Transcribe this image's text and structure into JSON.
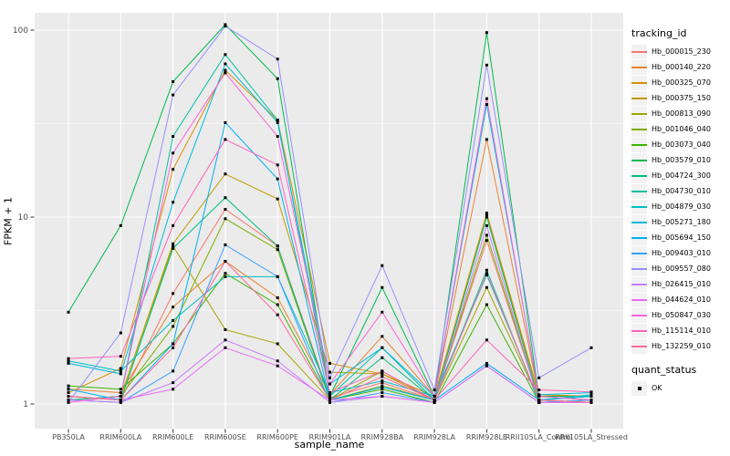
{
  "figure": {
    "background": "#FFFFFF",
    "panel_background": "#EBEBEB",
    "gridline_color": "#FFFFFF",
    "axis_text_color": "#4D4D4D",
    "tick_mark_color": "#333333",
    "title_text_color": "#000000",
    "legend_key_background": "#F2F2F2",
    "point_color": "#000000"
  },
  "chart_data": {
    "type": "line",
    "title": "",
    "xlabel": "sample_name",
    "ylabel": "FPKM + 1",
    "y_scale": "log10",
    "y_ticks": [
      1,
      10,
      100
    ],
    "y_tick_labels": [
      "1",
      "10",
      "100"
    ],
    "y_minor_gridlines": [
      3.162,
      31.623
    ],
    "ylim": [
      0.75,
      125
    ],
    "grid": true,
    "legend_position": "right",
    "point_shape": "filled-square",
    "categories": [
      "PB350LA",
      "RRIM600LA",
      "RRIM600LE",
      "RRIM600SE",
      "RRIM600PE",
      "RRIM901LA",
      "RRIM928BA",
      "RRIM928LA",
      "RRIM928LE",
      "RRII105LA_Control",
      "RRII105LA_Stressed"
    ],
    "series": [
      {
        "name": "Hb_000015_230",
        "color": "#F8766D",
        "values": [
          1.1,
          1.05,
          3.9,
          11.0,
          7.0,
          1.08,
          1.3,
          1.05,
          7.5,
          1.05,
          1.02
        ]
      },
      {
        "name": "Hb_000140_220",
        "color": "#EA8331",
        "values": [
          1.2,
          1.15,
          3.3,
          5.8,
          3.7,
          1.12,
          2.3,
          1.1,
          26.0,
          1.1,
          1.05
        ]
      },
      {
        "name": "Hb_000325_070",
        "color": "#D89000",
        "values": [
          1.15,
          1.55,
          18.0,
          61.0,
          33.0,
          1.65,
          1.45,
          1.1,
          10.5,
          1.12,
          1.1
        ]
      },
      {
        "name": "Hb_000375_150",
        "color": "#C09B00",
        "values": [
          1.05,
          1.1,
          7.2,
          17.0,
          12.5,
          1.48,
          1.45,
          1.05,
          10.2,
          1.1,
          1.05
        ]
      },
      {
        "name": "Hb_000813_090",
        "color": "#A3A500",
        "values": [
          1.1,
          1.05,
          7.0,
          2.5,
          2.1,
          1.05,
          1.5,
          1.05,
          4.2,
          1.05,
          1.02
        ]
      },
      {
        "name": "Hb_001046_040",
        "color": "#7CAE00",
        "values": [
          1.05,
          1.1,
          2.6,
          9.8,
          6.7,
          1.05,
          1.25,
          1.05,
          8.0,
          1.05,
          1.02
        ]
      },
      {
        "name": "Hb_003073_040",
        "color": "#39B600",
        "values": [
          1.25,
          1.2,
          2.1,
          5.0,
          3.4,
          1.05,
          1.2,
          1.02,
          3.4,
          1.02,
          1.05
        ]
      },
      {
        "name": "Hb_003579_010",
        "color": "#00BB4E",
        "values": [
          3.1,
          9.0,
          53.0,
          107.0,
          55.0,
          1.1,
          4.2,
          1.1,
          97.0,
          1.1,
          1.1
        ]
      },
      {
        "name": "Hb_004724_300",
        "color": "#00BF7D",
        "values": [
          1.1,
          1.05,
          6.8,
          12.7,
          7.0,
          1.05,
          1.77,
          1.05,
          10.0,
          1.05,
          1.1
        ]
      },
      {
        "name": "Hb_004730_010",
        "color": "#00C1A3",
        "values": [
          1.05,
          1.1,
          27.0,
          74.0,
          33.0,
          1.1,
          2.0,
          1.05,
          5.2,
          1.02,
          1.05
        ]
      },
      {
        "name": "Hb_004879_030",
        "color": "#00BFC4",
        "values": [
          1.7,
          1.5,
          2.8,
          4.8,
          4.8,
          1.15,
          1.33,
          1.1,
          4.9,
          1.05,
          1.12
        ]
      },
      {
        "name": "Hb_005271_180",
        "color": "#00BAE0",
        "values": [
          1.65,
          1.45,
          12.0,
          66.0,
          32.0,
          1.28,
          2.0,
          1.1,
          40.0,
          1.12,
          1.15
        ]
      },
      {
        "name": "Hb_005694_150",
        "color": "#00B0F6",
        "values": [
          1.2,
          1.05,
          2.1,
          32.0,
          16.0,
          1.05,
          1.23,
          1.05,
          1.65,
          1.05,
          1.1
        ]
      },
      {
        "name": "Hb_009403_010",
        "color": "#35A2FF",
        "values": [
          1.05,
          1.02,
          1.5,
          7.1,
          4.8,
          1.02,
          1.15,
          1.02,
          1.6,
          1.02,
          1.05
        ]
      },
      {
        "name": "Hb_009557_080",
        "color": "#9590FF",
        "values": [
          1.02,
          2.4,
          45.0,
          105.0,
          70.0,
          1.38,
          5.5,
          1.19,
          65.0,
          1.38,
          2.0
        ]
      },
      {
        "name": "Hb_026415_010",
        "color": "#C77CFF",
        "values": [
          1.05,
          1.02,
          1.3,
          2.2,
          1.7,
          1.02,
          1.1,
          1.02,
          9.0,
          1.02,
          1.02
        ]
      },
      {
        "name": "Hb_044624_010",
        "color": "#E76BF3",
        "values": [
          1.1,
          1.05,
          1.2,
          2.0,
          1.6,
          1.05,
          1.1,
          1.02,
          1.6,
          1.02,
          1.02
        ]
      },
      {
        "name": "Hb_050847_030",
        "color": "#FA62DB",
        "values": [
          1.02,
          1.1,
          22.0,
          59.0,
          27.0,
          1.28,
          3.1,
          1.1,
          43.0,
          1.1,
          1.05
        ]
      },
      {
        "name": "Hb_115114_010",
        "color": "#FF62BC",
        "values": [
          1.75,
          1.8,
          9.0,
          26.0,
          19.0,
          1.15,
          1.5,
          1.05,
          2.2,
          1.19,
          1.16
        ]
      },
      {
        "name": "Hb_132259_010",
        "color": "#FF6A98",
        "values": [
          1.1,
          1.05,
          2.0,
          5.8,
          3.0,
          1.05,
          1.4,
          1.05,
          5.0,
          1.05,
          1.02
        ]
      }
    ]
  },
  "legend": {
    "tracking_title": "tracking_id",
    "quant_title": "quant_status",
    "quant_items": [
      {
        "label": "OK",
        "marker": "black-square"
      }
    ]
  }
}
